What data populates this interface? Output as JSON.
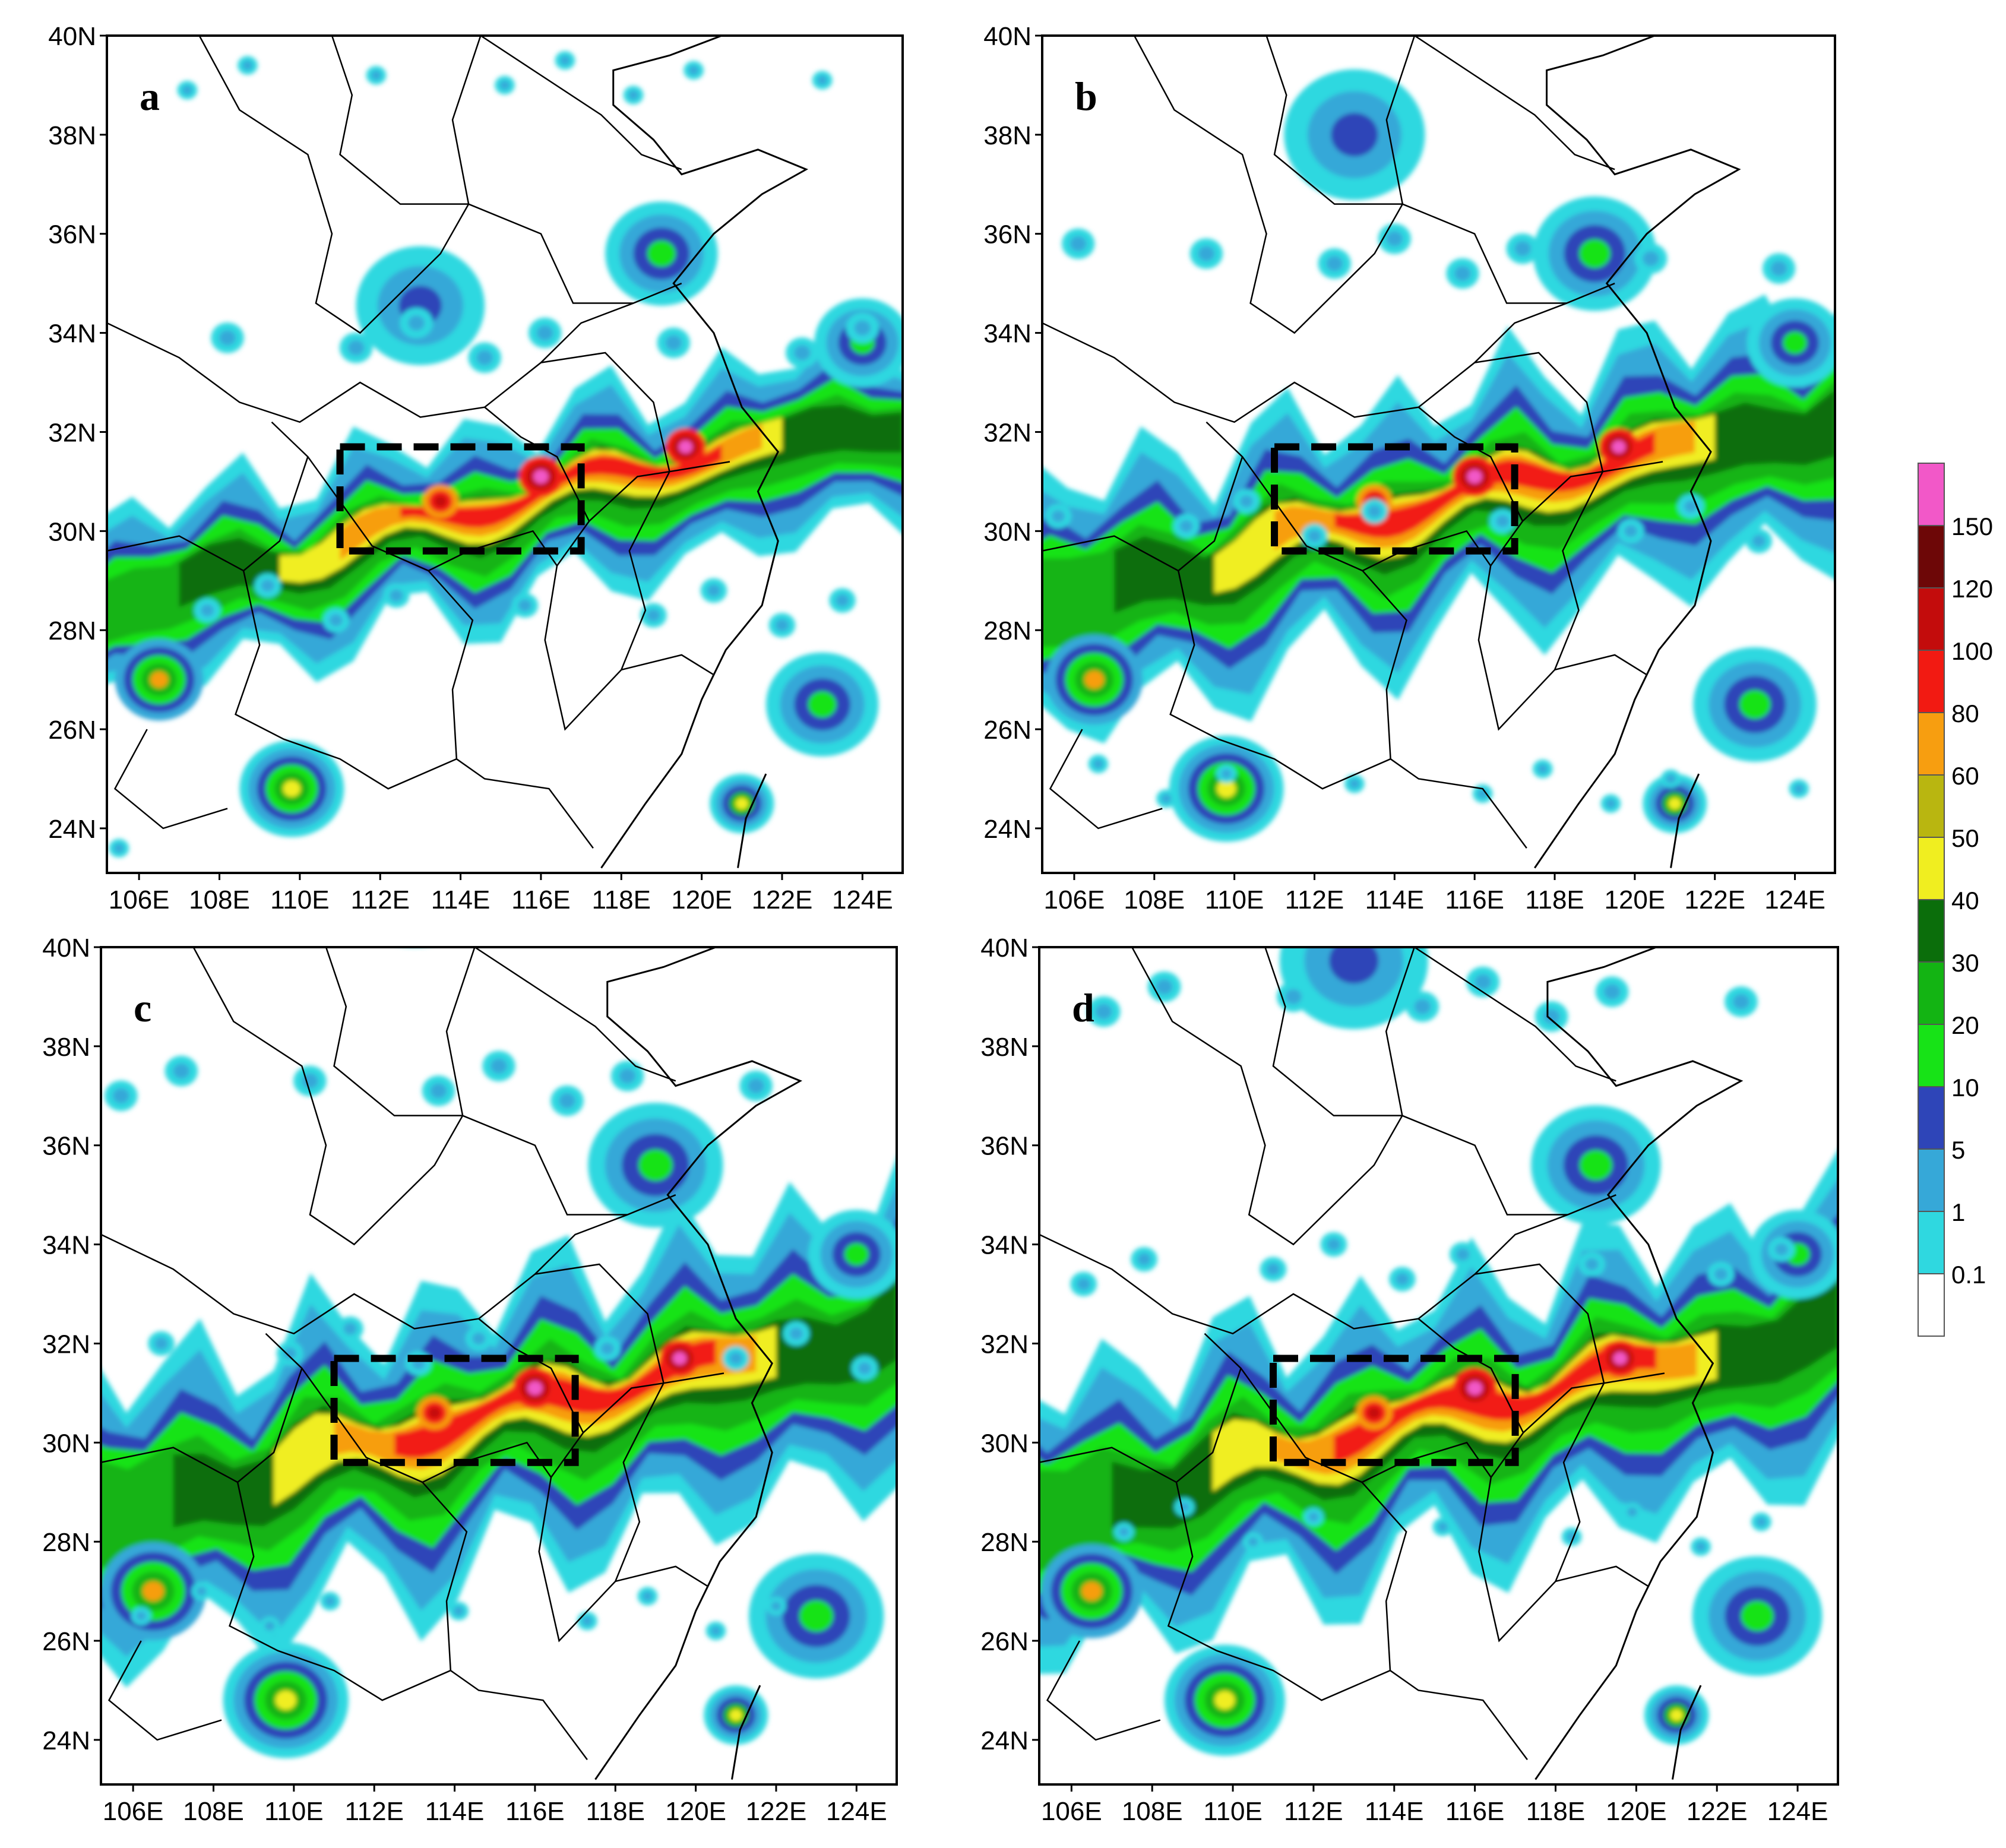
{
  "figure": {
    "panels": [
      {
        "letter": "a",
        "key": "a"
      },
      {
        "letter": "b",
        "key": "b"
      },
      {
        "letter": "c",
        "key": "c"
      },
      {
        "letter": "d",
        "key": "d"
      }
    ],
    "axes": {
      "lat_labels": [
        "40N",
        "38N",
        "36N",
        "34N",
        "32N",
        "30N",
        "28N",
        "26N",
        "24N"
      ],
      "lat_values": [
        40,
        38,
        36,
        34,
        32,
        30,
        28,
        26,
        24
      ],
      "lon_labels": [
        "106E",
        "108E",
        "110E",
        "112E",
        "114E",
        "116E",
        "118E",
        "120E",
        "122E",
        "124E"
      ],
      "lon_values": [
        106,
        108,
        110,
        112,
        114,
        116,
        118,
        120,
        122,
        124
      ],
      "lon_range": [
        105.2,
        125.0
      ],
      "lat_range": [
        23.1,
        40.0
      ]
    },
    "highlight_box": {
      "lon": [
        111,
        117
      ],
      "lat": [
        29.6,
        31.7
      ],
      "style": "black dashed"
    },
    "colorbar": {
      "levels": [
        "0.1",
        "1",
        "5",
        "10",
        "20",
        "30",
        "40",
        "50",
        "60",
        "80",
        "100",
        "120",
        "150"
      ],
      "colors": [
        "#ffffff",
        "#2fd8e0",
        "#36a8d8",
        "#2e45b8",
        "#17e317",
        "#13b413",
        "#0b6e0b",
        "#f0ee20",
        "#b9b610",
        "#f79e10",
        "#f21a12",
        "#c30c0c",
        "#6d0707",
        "#f258c8"
      ]
    },
    "map_elements": [
      "province boundaries",
      "coastline"
    ]
  }
}
